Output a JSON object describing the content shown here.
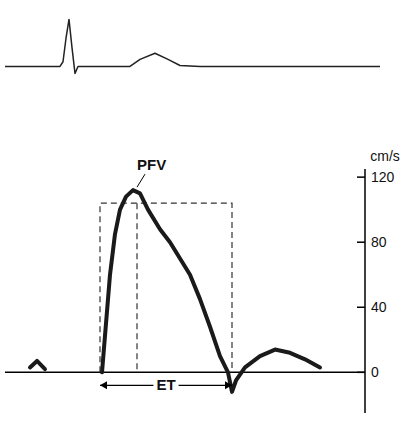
{
  "chart_data": [
    {
      "type": "line",
      "xlim": [
        0,
        375
      ],
      "ylim": [
        -0.5,
        1.2
      ],
      "tick_labels": false,
      "x": [
        0,
        55,
        58,
        61,
        64,
        67,
        70,
        73,
        125,
        135,
        150,
        163,
        175,
        195,
        375
      ],
      "series": [
        {
          "color": "#222222",
          "values": [
            0,
            0,
            0.1,
            0.6,
            1.0,
            0.4,
            -0.15,
            0,
            0,
            0.15,
            0.28,
            0.15,
            0.02,
            0,
            0
          ]
        }
      ]
    },
    {
      "type": "line",
      "xlim": [
        0,
        360
      ],
      "ylim": [
        -25,
        125
      ],
      "yticks": [
        0,
        40,
        80,
        120
      ],
      "y_label": "cm/s",
      "tick_labels": "y",
      "x": [
        25,
        32,
        40,
        60,
        97,
        101,
        105,
        110,
        115,
        121,
        128,
        135,
        143,
        155,
        165,
        175,
        185,
        195,
        205,
        215,
        223,
        227,
        231,
        240,
        255,
        270,
        285,
        300,
        315
      ],
      "series": [
        {
          "color": "#1a1a1a",
          "values": [
            3,
            7,
            2,
            null,
            0,
            30,
            60,
            85,
            100,
            108,
            112,
            110,
            100,
            88,
            80,
            70,
            60,
            45,
            28,
            10,
            0,
            -12,
            -5,
            3,
            10,
            14,
            12,
            8,
            3
          ]
        }
      ],
      "annotations": [
        {
          "text": "PFV",
          "x": 130,
          "y": 112
        },
        {
          "text": "ET",
          "x": [
            95,
            227
          ],
          "y": -8
        }
      ],
      "box": {
        "x": [
          95,
          227
        ],
        "y": [
          0,
          104
        ],
        "divider": 132
      }
    }
  ]
}
